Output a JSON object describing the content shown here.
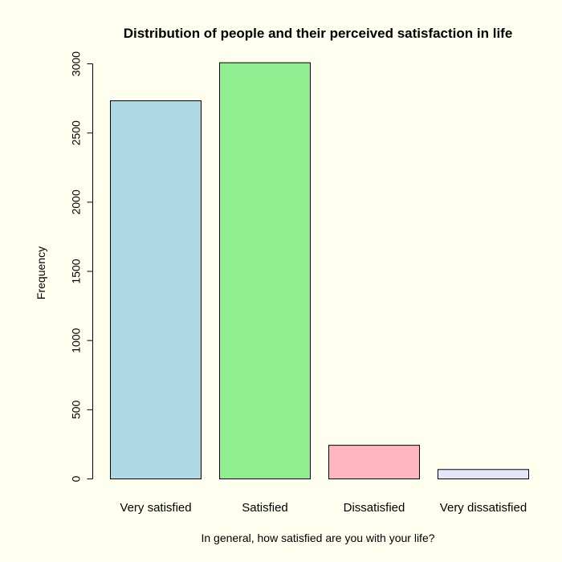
{
  "chart_data": {
    "type": "bar",
    "title": "Distribution of people and their perceived satisfaction in life",
    "xlabel": "In general, how satisfied are you with your life?",
    "ylabel": "Frequency",
    "categories": [
      "Very satisfied",
      "Satisfied",
      "Dissatisfied",
      "Very dissatisfied"
    ],
    "values": [
      2733,
      3008,
      243,
      68
    ],
    "colors": [
      "#add8e6",
      "#90ee90",
      "#ffb6c1",
      "#e6e6fa"
    ],
    "ylim": [
      0,
      3000
    ],
    "yticks": [
      0,
      500,
      1000,
      1500,
      2000,
      2500,
      3000
    ],
    "grid": false,
    "legend": "none",
    "background": "#fffff0"
  }
}
